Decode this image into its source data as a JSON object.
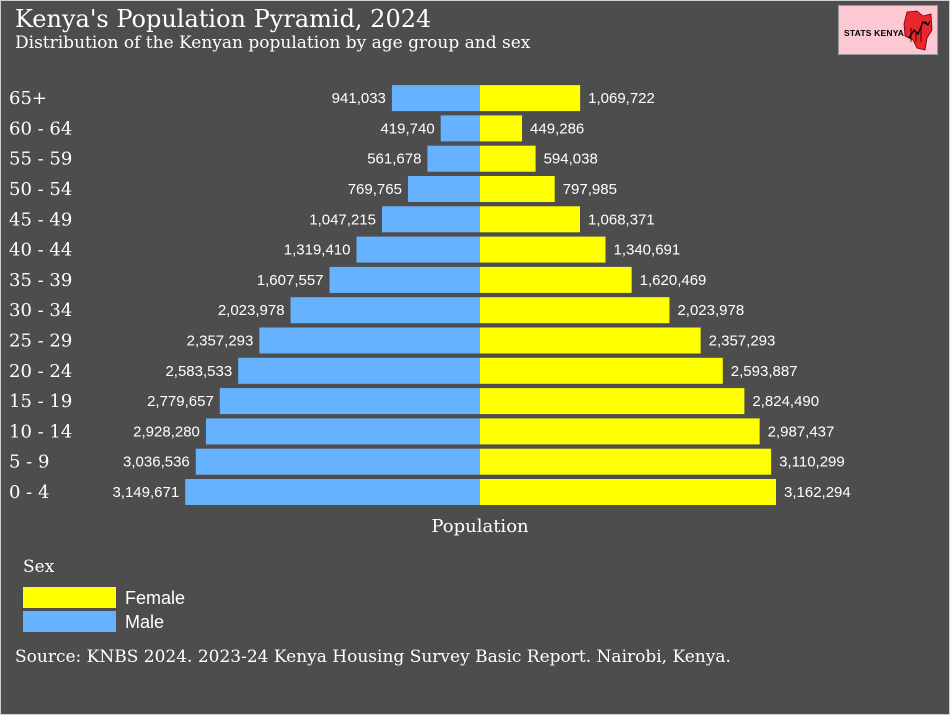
{
  "header": {
    "title": "Kenya's Population Pyramid, 2024",
    "subtitle": "Distribution of the Kenyan population by age group and sex"
  },
  "logo": {
    "text": "STATS KENYA",
    "icon": "kenya-map-chart-icon"
  },
  "legend": {
    "title": "Sex",
    "items": [
      {
        "label": "Female",
        "color": "#ffff00"
      },
      {
        "label": "Male",
        "color": "#66b2ff"
      }
    ]
  },
  "source": "Source: KNBS 2024. 2023-24 Kenya Housing Survey Basic Report. Nairobi, Kenya.",
  "colors": {
    "background": "#4d4d4d",
    "female": "#ffff00",
    "male": "#66b2ff",
    "text": "#ffffff"
  },
  "chart_data": {
    "type": "bar",
    "orientation": "horizontal-pyramid",
    "title": "Kenya's Population Pyramid, 2024",
    "subtitle": "Distribution of the Kenyan population by age group and sex",
    "xlabel": "Population",
    "ylabel": "",
    "grid": false,
    "legend_position": "bottom-left",
    "categories": [
      "0 - 4",
      "5 - 9",
      "10 - 14",
      "15 - 19",
      "20 - 24",
      "25 - 29",
      "30 - 34",
      "35 - 39",
      "40 - 44",
      "45 - 49",
      "50 - 54",
      "55 - 59",
      "60 - 64",
      "65+"
    ],
    "series": [
      {
        "name": "Male",
        "color": "#66b2ff",
        "values": [
          3149671,
          3036536,
          2928280,
          2779657,
          2583533,
          2357293,
          2023978,
          1607557,
          1319410,
          1047215,
          769765,
          561678,
          419740,
          941033
        ]
      },
      {
        "name": "Female",
        "color": "#ffff00",
        "values": [
          3162294,
          3110299,
          2987437,
          2824490,
          2593887,
          2357293,
          2023978,
          1620469,
          1340691,
          1068371,
          797985,
          594038,
          449286,
          1069722
        ]
      }
    ]
  }
}
